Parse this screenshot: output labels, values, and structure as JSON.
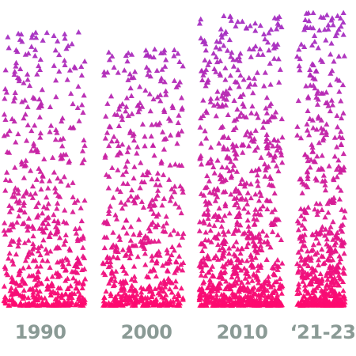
{
  "chart_data": {
    "type": "scatter",
    "title": "",
    "xlabel": "",
    "ylabel": "",
    "categories": [
      "1990",
      "2000",
      "2010",
      "‘21-23"
    ],
    "colors": {
      "low": "#ff0a6e",
      "high": "#a62fc2",
      "label": "#8a9a95"
    },
    "marker": "triangle-up",
    "grid": false,
    "legend": "none"
  }
}
